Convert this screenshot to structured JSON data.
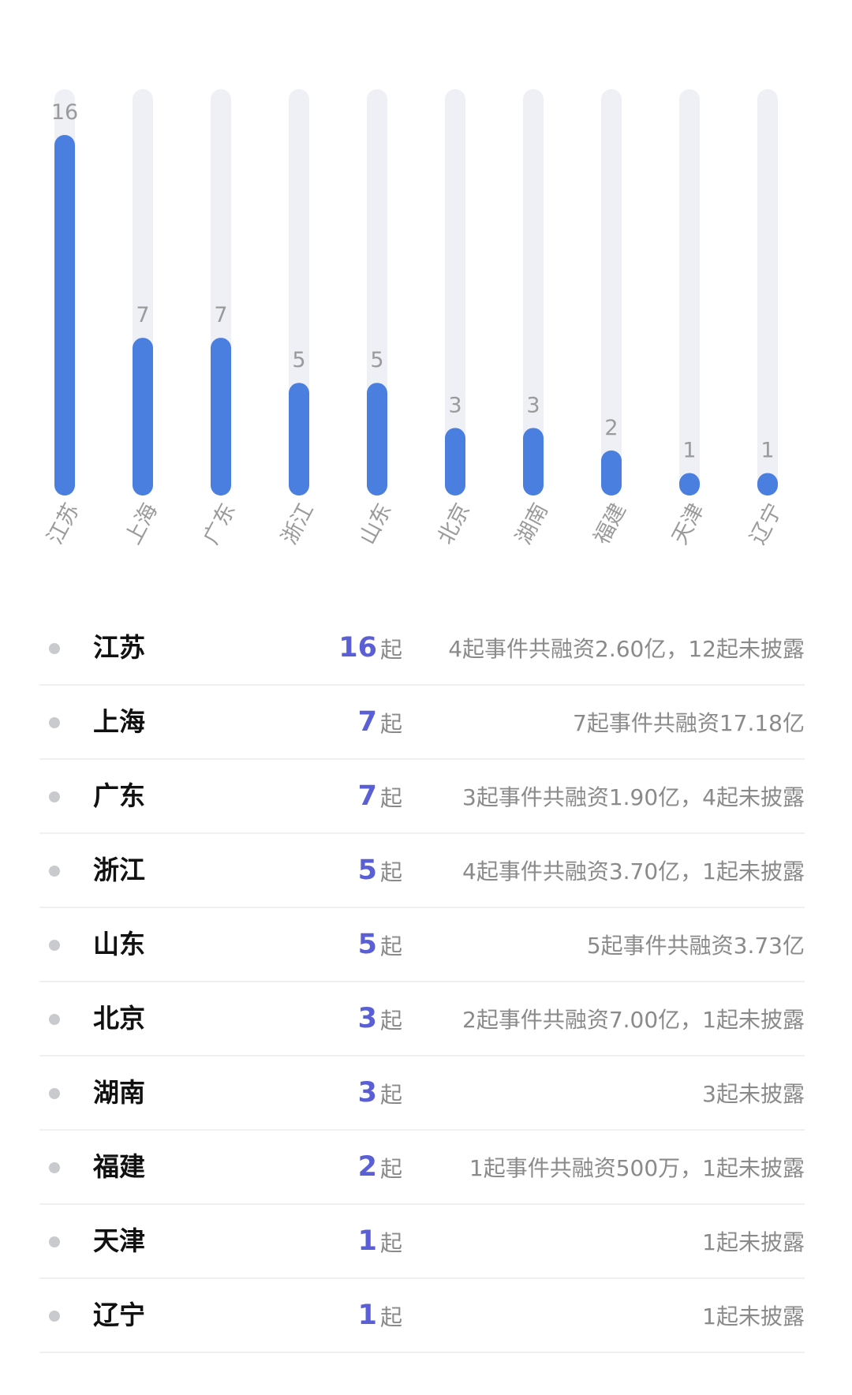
{
  "chart_data": {
    "type": "bar",
    "categories": [
      "江苏",
      "上海",
      "广东",
      "浙江",
      "山东",
      "北京",
      "湖南",
      "福建",
      "天津",
      "辽宁"
    ],
    "values": [
      16,
      7,
      7,
      5,
      5,
      3,
      3,
      2,
      1,
      1
    ],
    "ylim": [
      0,
      16
    ],
    "grid": false,
    "colors": {
      "bar": "#4a7fe0",
      "track": "#eef0f6",
      "label": "#9a9a9a"
    }
  },
  "table": {
    "rows": [
      {
        "region": "江苏",
        "count": "16",
        "unit": "起",
        "note": "4起事件共融资2.60亿，12起未披露"
      },
      {
        "region": "上海",
        "count": "7",
        "unit": "起",
        "note": "7起事件共融资17.18亿"
      },
      {
        "region": "广东",
        "count": "7",
        "unit": "起",
        "note": "3起事件共融资1.90亿，4起未披露"
      },
      {
        "region": "浙江",
        "count": "5",
        "unit": "起",
        "note": "4起事件共融资3.70亿，1起未披露"
      },
      {
        "region": "山东",
        "count": "5",
        "unit": "起",
        "note": "5起事件共融资3.73亿"
      },
      {
        "region": "北京",
        "count": "3",
        "unit": "起",
        "note": "2起事件共融资7.00亿，1起未披露"
      },
      {
        "region": "湖南",
        "count": "3",
        "unit": "起",
        "note": "3起未披露"
      },
      {
        "region": "福建",
        "count": "2",
        "unit": "起",
        "note": "1起事件共融资500万，1起未披露"
      },
      {
        "region": "天津",
        "count": "1",
        "unit": "起",
        "note": "1起未披露"
      },
      {
        "region": "辽宁",
        "count": "1",
        "unit": "起",
        "note": "1起未披露"
      }
    ]
  }
}
